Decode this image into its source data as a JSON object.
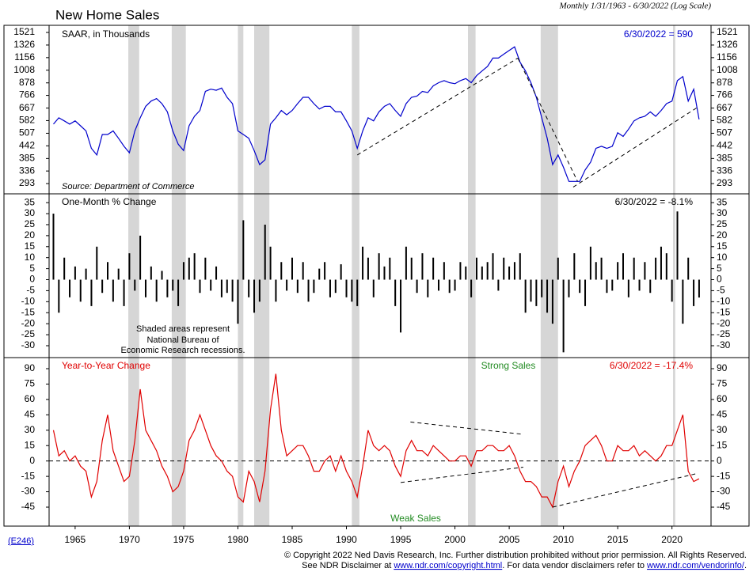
{
  "title": "New Home Sales",
  "subtitle": "Monthly 1/31/1963 - 6/30/2022 (Log Scale)",
  "recessions": [
    [
      1969.9,
      1970.9
    ],
    [
      1973.9,
      1975.2
    ],
    [
      1980.0,
      1980.5
    ],
    [
      1981.5,
      1982.9
    ],
    [
      1990.5,
      1991.2
    ],
    [
      2001.2,
      2001.9
    ],
    [
      2007.9,
      2009.5
    ],
    [
      2020.1,
      2020.3
    ]
  ],
  "chart_data": [
    {
      "type": "line",
      "label": "SAAR, in Thousands",
      "last_value_label": "6/30/2022 = 590",
      "source": "Source: Department of Commerce",
      "color": "#0000cc",
      "log_scale": true,
      "xlim": [
        1962.6,
        2023.6
      ],
      "ylim": [
        262,
        1644
      ],
      "yticks": [
        293,
        336,
        385,
        442,
        507,
        582,
        667,
        766,
        878,
        1008,
        1156,
        1326,
        1521
      ],
      "x": [
        1963,
        1963.5,
        1964,
        1964.5,
        1965,
        1965.5,
        1966,
        1966.5,
        1967,
        1967.5,
        1968,
        1968.5,
        1969,
        1969.5,
        1970,
        1970.5,
        1971,
        1971.5,
        1972,
        1972.5,
        1973,
        1973.5,
        1974,
        1974.5,
        1975,
        1975.5,
        1976,
        1976.5,
        1977,
        1977.5,
        1978,
        1978.5,
        1979,
        1979.5,
        1980,
        1980.5,
        1981,
        1981.5,
        1982,
        1982.5,
        1983,
        1983.5,
        1984,
        1984.5,
        1985,
        1985.5,
        1986,
        1986.5,
        1987,
        1987.5,
        1988,
        1988.5,
        1989,
        1989.5,
        1990,
        1990.5,
        1991,
        1991.5,
        1992,
        1992.5,
        1993,
        1993.5,
        1994,
        1994.5,
        1995,
        1995.5,
        1996,
        1996.5,
        1997,
        1997.5,
        1998,
        1998.5,
        1999,
        1999.5,
        2000,
        2000.5,
        2001,
        2001.5,
        2002,
        2002.5,
        2003,
        2003.5,
        2004,
        2004.5,
        2005,
        2005.5,
        2006,
        2006.5,
        2007,
        2007.5,
        2008,
        2008.5,
        2009,
        2009.5,
        2010,
        2010.5,
        2011,
        2011.5,
        2012,
        2012.5,
        2013,
        2013.5,
        2014,
        2014.5,
        2015,
        2015.5,
        2016,
        2016.5,
        2017,
        2017.5,
        2018,
        2018.5,
        2019,
        2019.5,
        2020,
        2020.5,
        2021,
        2021.5,
        2022,
        2022.5
      ],
      "values": [
        560,
        600,
        580,
        560,
        580,
        550,
        520,
        430,
        400,
        500,
        500,
        520,
        480,
        440,
        410,
        520,
        600,
        680,
        720,
        740,
        700,
        640,
        520,
        450,
        420,
        550,
        610,
        650,
        800,
        820,
        810,
        830,
        750,
        700,
        520,
        500,
        480,
        420,
        360,
        380,
        560,
        600,
        650,
        620,
        650,
        700,
        750,
        750,
        700,
        660,
        680,
        680,
        640,
        640,
        580,
        520,
        430,
        520,
        600,
        580,
        640,
        680,
        700,
        650,
        610,
        700,
        750,
        760,
        800,
        790,
        850,
        880,
        900,
        880,
        870,
        900,
        920,
        880,
        950,
        1000,
        1050,
        1150,
        1150,
        1200,
        1250,
        1300,
        1100,
        1000,
        880,
        750,
        600,
        480,
        360,
        400,
        350,
        300,
        300,
        300,
        340,
        370,
        430,
        440,
        430,
        440,
        510,
        490,
        530,
        580,
        600,
        610,
        640,
        610,
        650,
        700,
        720,
        900,
        940,
        720,
        820,
        590
      ],
      "trend_lines": [
        [
          [
            1991.0,
            400
          ],
          [
            2005.8,
            1150
          ]
        ],
        [
          [
            2005.8,
            1150
          ],
          [
            2011.3,
            300
          ]
        ],
        [
          [
            2010.9,
            282
          ],
          [
            2022.5,
            680
          ]
        ]
      ]
    },
    {
      "type": "bar",
      "label": "One-Month % Change",
      "last_value_label": "6/30/2022 = -8.1%",
      "annotation": [
        "Shaded areas represent",
        "National Bureau of",
        "Economic Research recessions."
      ],
      "color": "#000000",
      "xlim": [
        1962.6,
        2023.6
      ],
      "ylim": [
        -35.4,
        39
      ],
      "yticks": [
        -30,
        -25,
        -20,
        -15,
        -10,
        -5,
        0,
        5,
        10,
        15,
        20,
        25,
        30,
        35
      ],
      "x": [
        1963,
        1963.5,
        1964,
        1964.5,
        1965,
        1965.5,
        1966,
        1966.5,
        1967,
        1967.5,
        1968,
        1968.5,
        1969,
        1969.5,
        1970,
        1970.5,
        1971,
        1971.5,
        1972,
        1972.5,
        1973,
        1973.5,
        1974,
        1974.5,
        1975,
        1975.5,
        1976,
        1976.5,
        1977,
        1977.5,
        1978,
        1978.5,
        1979,
        1979.5,
        1980,
        1980.5,
        1981,
        1981.5,
        1982,
        1982.5,
        1983,
        1983.5,
        1984,
        1984.5,
        1985,
        1985.5,
        1986,
        1986.5,
        1987,
        1987.5,
        1988,
        1988.5,
        1989,
        1989.5,
        1990,
        1990.5,
        1991,
        1991.5,
        1992,
        1992.5,
        1993,
        1993.5,
        1994,
        1994.5,
        1995,
        1995.5,
        1996,
        1996.5,
        1997,
        1997.5,
        1998,
        1998.5,
        1999,
        1999.5,
        2000,
        2000.5,
        2001,
        2001.5,
        2002,
        2002.5,
        2003,
        2003.5,
        2004,
        2004.5,
        2005,
        2005.5,
        2006,
        2006.5,
        2007,
        2007.5,
        2008,
        2008.5,
        2009,
        2009.5,
        2010,
        2010.5,
        2011,
        2011.5,
        2012,
        2012.5,
        2013,
        2013.5,
        2014,
        2014.5,
        2015,
        2015.5,
        2016,
        2016.5,
        2017,
        2017.5,
        2018,
        2018.5,
        2019,
        2019.5,
        2020,
        2020.5,
        2021,
        2021.5,
        2022,
        2022.5
      ],
      "values": [
        30,
        -15,
        10,
        -8,
        6,
        -10,
        5,
        -12,
        15,
        -6,
        8,
        -10,
        5,
        -12,
        12,
        -5,
        20,
        -8,
        6,
        -10,
        4,
        -8,
        -5,
        -12,
        8,
        10,
        12,
        -6,
        10,
        -5,
        6,
        -8,
        -6,
        -10,
        -20,
        27,
        -8,
        -15,
        -10,
        25,
        15,
        -10,
        8,
        -5,
        10,
        -6,
        8,
        -10,
        -6,
        5,
        8,
        -8,
        -6,
        7,
        -8,
        -10,
        -12,
        15,
        10,
        -8,
        12,
        6,
        10,
        -12,
        -24,
        15,
        10,
        -6,
        12,
        -8,
        10,
        -5,
        8,
        -6,
        -5,
        8,
        6,
        -8,
        10,
        6,
        8,
        12,
        -5,
        10,
        6,
        8,
        12,
        -15,
        -10,
        -12,
        -8,
        -15,
        -20,
        10,
        -33,
        -8,
        12,
        -6,
        -12,
        15,
        8,
        10,
        -6,
        -5,
        8,
        12,
        -8,
        10,
        -5,
        8,
        -6,
        10,
        15,
        12,
        -10,
        31,
        -20,
        10,
        -12,
        -8.1
      ]
    },
    {
      "type": "line",
      "label": "Year-to-Year Change",
      "last_value_label": "6/30/2022 = -17.4%",
      "strong_label": "Strong Sales",
      "weak_label": "Weak Sales",
      "color": "#e00000",
      "xlim": [
        1962.6,
        2023.6
      ],
      "ylim": [
        -63.5,
        100.8
      ],
      "yticks": [
        -45,
        -30,
        -15,
        0,
        15,
        30,
        45,
        60,
        75,
        90
      ],
      "reference_line": 0,
      "xticks": [
        1965,
        1970,
        1975,
        1980,
        1985,
        1990,
        1995,
        2000,
        2005,
        2010,
        2015,
        2020
      ],
      "x": [
        1963,
        1963.5,
        1964,
        1964.5,
        1965,
        1965.5,
        1966,
        1966.5,
        1967,
        1967.5,
        1968,
        1968.5,
        1969,
        1969.5,
        1970,
        1970.5,
        1971,
        1971.5,
        1972,
        1972.5,
        1973,
        1973.5,
        1974,
        1974.5,
        1975,
        1975.5,
        1976,
        1976.5,
        1977,
        1977.5,
        1978,
        1978.5,
        1979,
        1979.5,
        1980,
        1980.5,
        1981,
        1981.5,
        1982,
        1982.5,
        1983,
        1983.5,
        1984,
        1984.5,
        1985,
        1985.5,
        1986,
        1986.5,
        1987,
        1987.5,
        1988,
        1988.5,
        1989,
        1989.5,
        1990,
        1990.5,
        1991,
        1991.5,
        1992,
        1992.5,
        1993,
        1993.5,
        1994,
        1994.5,
        1995,
        1995.5,
        1996,
        1996.5,
        1997,
        1997.5,
        1998,
        1998.5,
        1999,
        1999.5,
        2000,
        2000.5,
        2001,
        2001.5,
        2002,
        2002.5,
        2003,
        2003.5,
        2004,
        2004.5,
        2005,
        2005.5,
        2006,
        2006.5,
        2007,
        2007.5,
        2008,
        2008.5,
        2009,
        2009.5,
        2010,
        2010.5,
        2011,
        2011.5,
        2012,
        2012.5,
        2013,
        2013.5,
        2014,
        2014.5,
        2015,
        2015.5,
        2016,
        2016.5,
        2017,
        2017.5,
        2018,
        2018.5,
        2019,
        2019.5,
        2020,
        2020.5,
        2021,
        2021.5,
        2022,
        2022.5
      ],
      "values": [
        30,
        5,
        10,
        0,
        5,
        -5,
        -10,
        -35,
        -20,
        20,
        45,
        10,
        -5,
        -20,
        -15,
        20,
        70,
        30,
        20,
        10,
        -5,
        -15,
        -30,
        -25,
        -10,
        20,
        30,
        45,
        30,
        15,
        5,
        0,
        -10,
        -15,
        -35,
        -40,
        -10,
        -20,
        -40,
        -10,
        50,
        85,
        30,
        5,
        10,
        15,
        15,
        5,
        -10,
        -10,
        0,
        5,
        -10,
        5,
        -10,
        -20,
        -35,
        -5,
        30,
        15,
        10,
        15,
        10,
        -5,
        -15,
        10,
        20,
        10,
        10,
        5,
        15,
        10,
        5,
        0,
        0,
        5,
        5,
        -5,
        10,
        10,
        15,
        15,
        10,
        10,
        15,
        5,
        -10,
        -20,
        -20,
        -25,
        -35,
        -35,
        -45,
        -20,
        -5,
        -25,
        -10,
        0,
        15,
        20,
        25,
        15,
        0,
        0,
        15,
        10,
        10,
        15,
        5,
        10,
        5,
        0,
        5,
        15,
        15,
        30,
        45,
        -10,
        -20,
        -17.4
      ],
      "trend_lines": [
        [
          [
            1995.9,
            38
          ],
          [
            2006.3,
            26
          ]
        ],
        [
          [
            1995.0,
            -21
          ],
          [
            2006.3,
            -6
          ]
        ],
        [
          [
            2009.0,
            -45
          ],
          [
            2022.4,
            -12
          ]
        ]
      ]
    }
  ],
  "footer": {
    "code": "(E246)",
    "line1": "© Copyright 2022 Ned Davis Research, Inc.  Further distribution prohibited without prior permission.  All Rights Reserved.",
    "line2_start": "See NDR Disclaimer at ",
    "link1": "www.ndr.com/copyright.html",
    "line2_mid": ". For data vendor disclaimers refer to ",
    "link2": "www.ndr.com/vendorinfo/",
    "line2_end": "."
  }
}
